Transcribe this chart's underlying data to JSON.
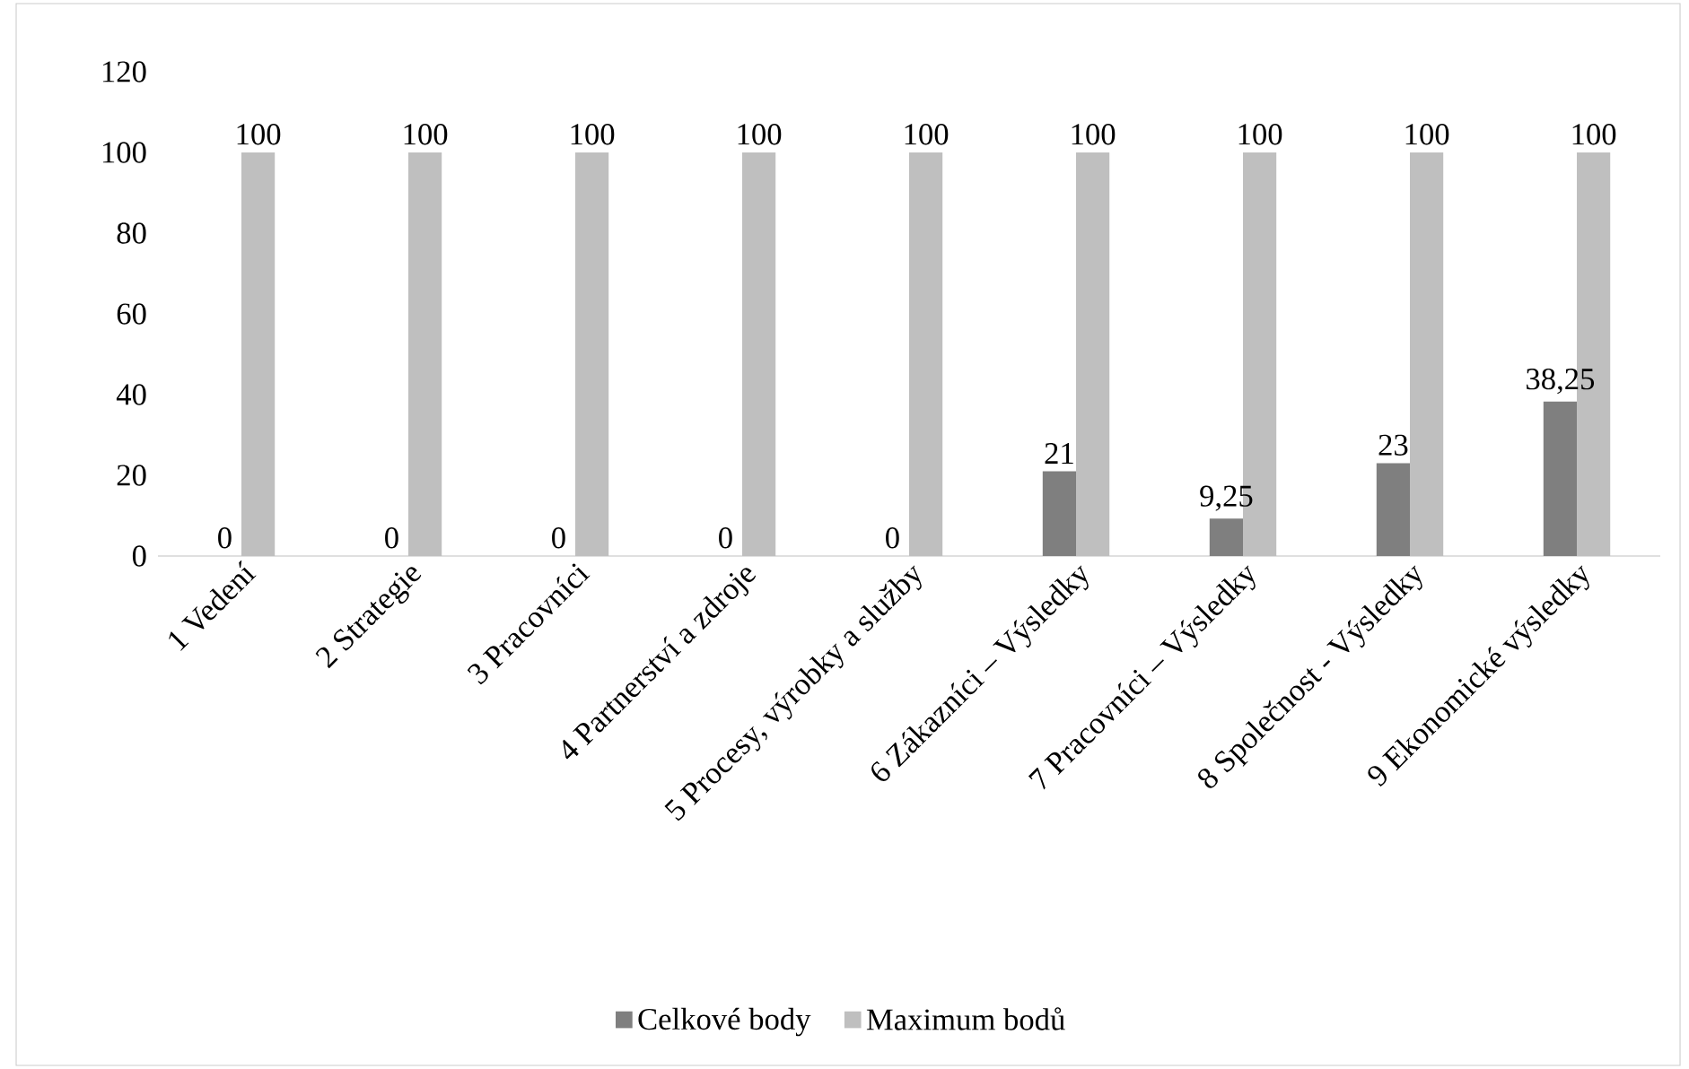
{
  "chart_data": {
    "type": "bar",
    "categories": [
      "1 Vedení",
      "2 Strategie",
      "3 Pracovníci",
      "4 Partnerství a zdroje",
      "5 Procesy, výrobky a služby",
      "6 Zákazníci – Výsledky",
      "7 Pracovníci – Výsledky",
      "8 Společnost - Výsledky",
      "9 Ekonomické výsledky"
    ],
    "series": [
      {
        "name": "Celkové body",
        "color": "#7f7f7f",
        "values": [
          0,
          0,
          0,
          0,
          0,
          21,
          9.25,
          23,
          38.25
        ],
        "value_labels": [
          "0",
          "0",
          "0",
          "0",
          "0",
          "21",
          "9,25",
          "23",
          "38,25"
        ]
      },
      {
        "name": "Maximum bodů",
        "color": "#bfbfbf",
        "values": [
          100,
          100,
          100,
          100,
          100,
          100,
          100,
          100,
          100
        ],
        "value_labels": [
          "100",
          "100",
          "100",
          "100",
          "100",
          "100",
          "100",
          "100",
          "100"
        ]
      }
    ],
    "ylim": [
      0,
      120
    ],
    "yticks": [
      0,
      20,
      40,
      60,
      80,
      100,
      120
    ],
    "legend": "bottom"
  }
}
